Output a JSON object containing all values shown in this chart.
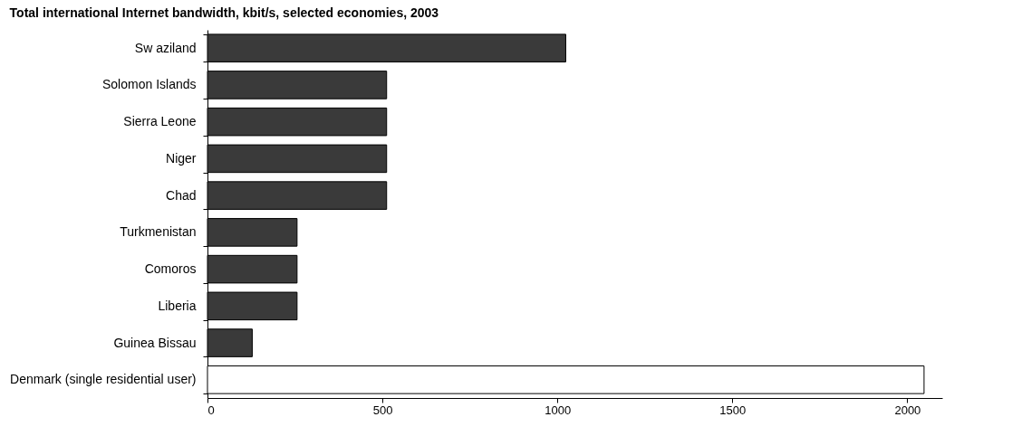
{
  "chart_data": {
    "type": "bar",
    "orientation": "horizontal",
    "title": "Total international Internet bandwidth, kbit/s, selected economies, 2003",
    "categories": [
      "Sw aziland",
      "Solomon Islands",
      "Sierra Leone",
      "Niger",
      "Chad",
      "Turkmenistan",
      "Comoros",
      "Liberia",
      "Guinea Bissau",
      null,
      "Denmark (single residential user)"
    ],
    "values": [
      1024,
      512,
      512,
      512,
      512,
      256,
      256,
      256,
      128,
      null,
      2048
    ],
    "colors": [
      "#3a3a3a",
      "#3a3a3a",
      "#3a3a3a",
      "#3a3a3a",
      "#3a3a3a",
      "#3a3a3a",
      "#3a3a3a",
      "#3a3a3a",
      "#3a3a3a",
      "#3a3a3a",
      "#ffffff"
    ],
    "xlim": [
      0,
      2100
    ],
    "xticks": [
      0,
      500,
      1000,
      1500,
      2000
    ],
    "grid": false
  }
}
